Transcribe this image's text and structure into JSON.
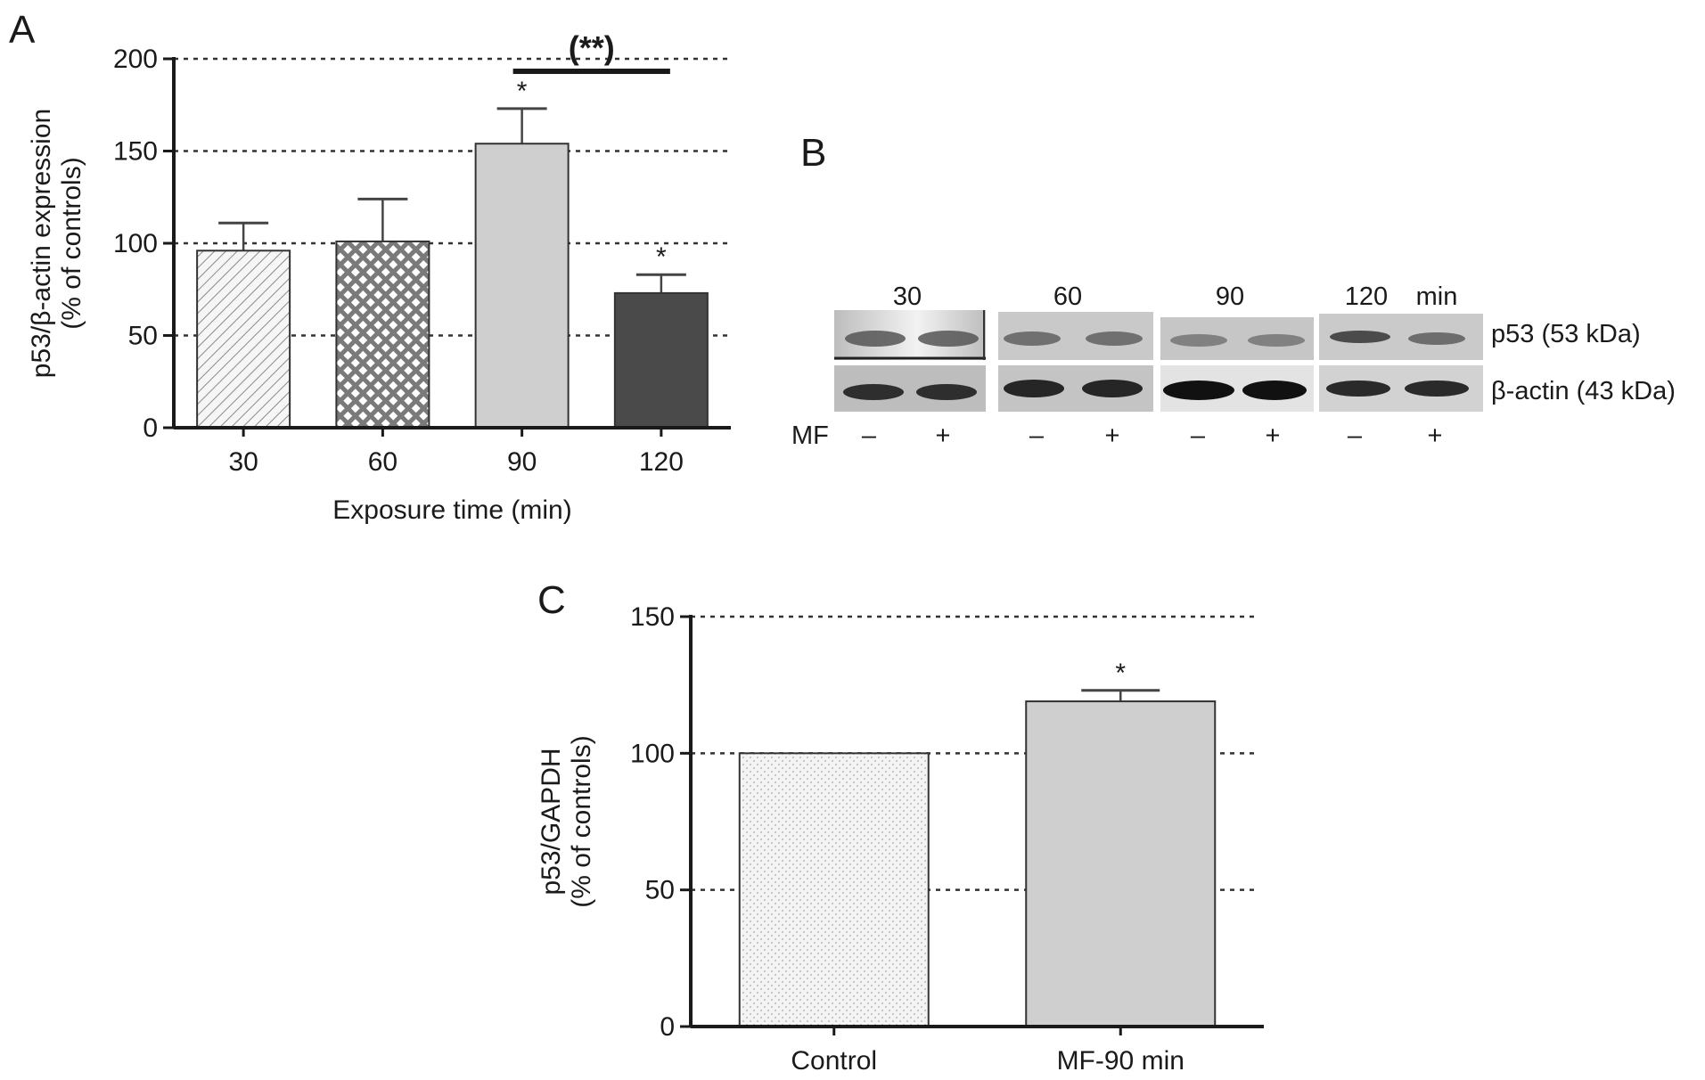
{
  "panels": {
    "a": {
      "letter": "A"
    },
    "b": {
      "letter": "B"
    },
    "c": {
      "letter": "C"
    }
  },
  "chart_data": [
    {
      "panel": "A",
      "type": "bar",
      "categories": [
        "30",
        "60",
        "90",
        "120"
      ],
      "values": [
        96,
        101,
        154,
        73
      ],
      "errors": [
        15,
        23,
        19,
        10
      ],
      "significance": [
        "",
        "",
        "*",
        "*"
      ],
      "bracket": {
        "from": "90",
        "to": "120",
        "label": "(**)"
      },
      "fills": [
        "diagonal-hatch",
        "crosshatch",
        "light-gray",
        "dark-gray"
      ],
      "colors": {
        "light": "#cfcfcf",
        "dark": "#4a4a4a",
        "axis": "#1a1a1a"
      },
      "xlabel": "Exposure time (min)",
      "ylabel_line1": "p53/β-actin expression",
      "ylabel_line2": "(% of controls)",
      "ylim": [
        0,
        200
      ],
      "yticks": [
        "0",
        "50",
        "100",
        "150",
        "200"
      ],
      "grid": "dotted horizontal at 50, 100, 150, 200"
    },
    {
      "panel": "C",
      "type": "bar",
      "categories": [
        "Control",
        "MF-90 min"
      ],
      "values": [
        100,
        119
      ],
      "errors": [
        0,
        4
      ],
      "significance": [
        "",
        "*"
      ],
      "fills": [
        "light-dotted",
        "light-gray"
      ],
      "colors": {
        "light": "#cfcfcf",
        "axis": "#1a1a1a"
      },
      "xlabel": "",
      "ylabel_line1": "p53/GAPDH",
      "ylabel_line2": "(% of controls)",
      "ylim": [
        0,
        150
      ],
      "yticks": [
        "0",
        "50",
        "100",
        "150"
      ],
      "grid": "dotted horizontal at 50, 100, 150"
    }
  ],
  "blot": {
    "time_labels": [
      "30",
      "60",
      "90",
      "120"
    ],
    "unit": "min",
    "bands": [
      {
        "label": "p53 (53 kDa)"
      },
      {
        "label": "β-actin (43 kDa)"
      }
    ],
    "mf_label": "MF",
    "lanes": [
      "–",
      "+",
      "–",
      "+",
      "–",
      "+",
      "–",
      "+"
    ]
  }
}
